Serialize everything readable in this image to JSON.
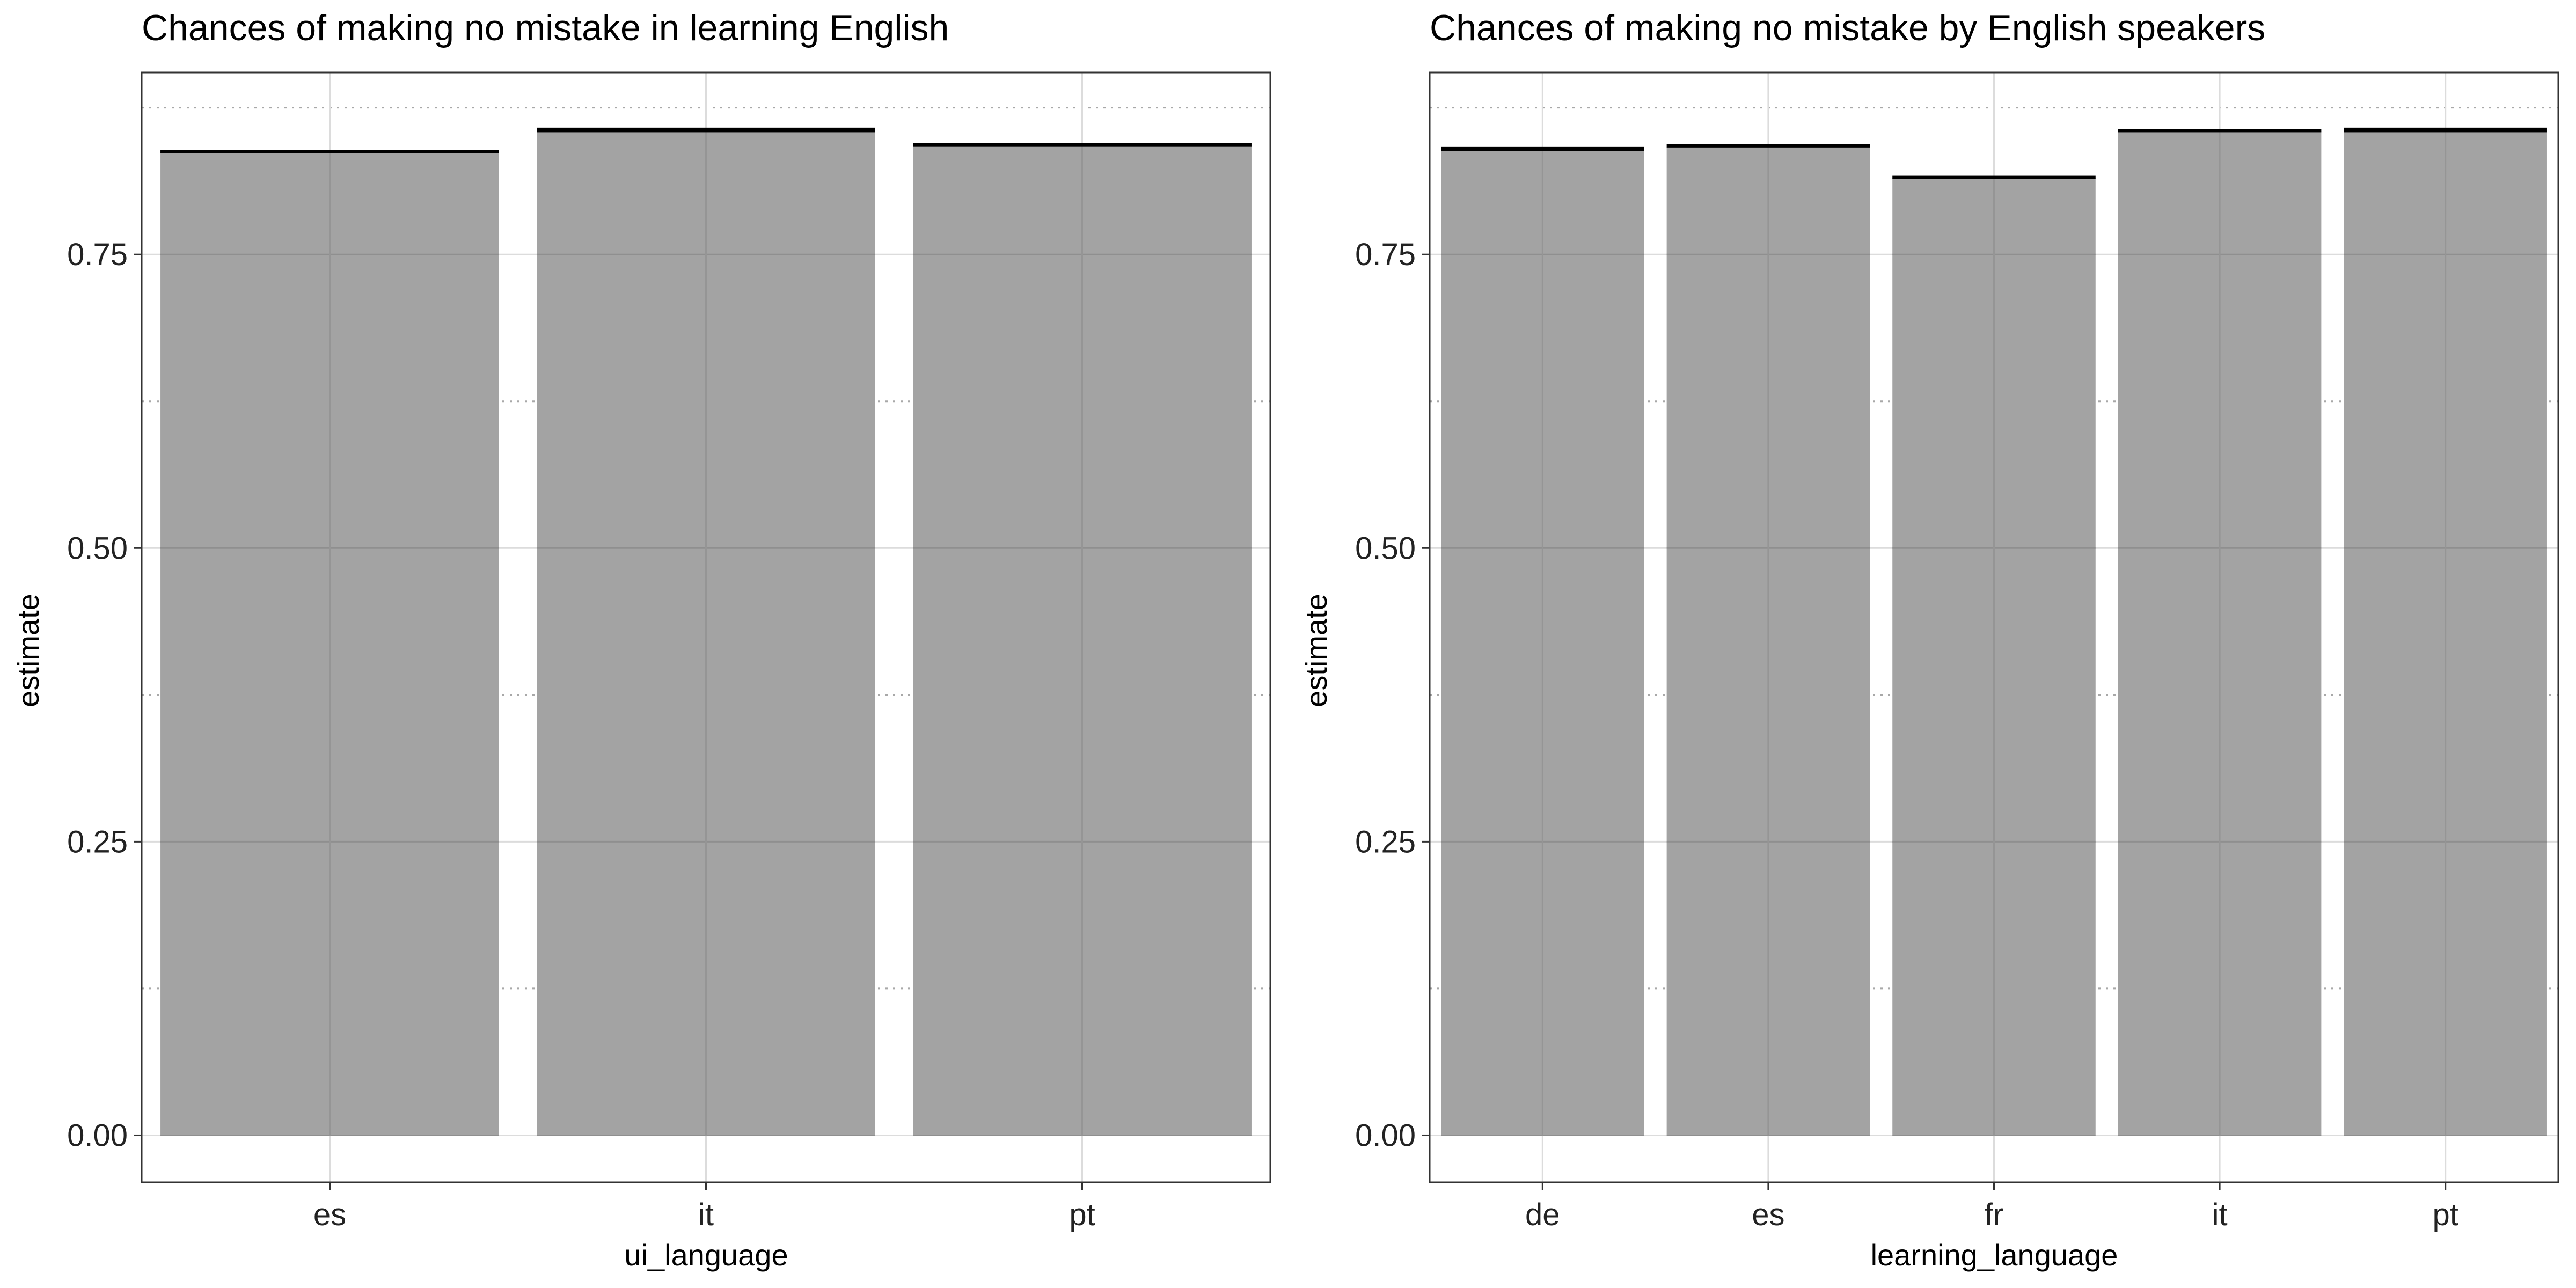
{
  "colors": {
    "bar_fill": "#a3a3a3",
    "errorbar": "#000000",
    "grid_major": "#dcdcdc",
    "grid_minor_dotted": "#a8a8a8",
    "panel_border": "#333333"
  },
  "chart_data": [
    {
      "type": "bar",
      "title": "Chances of making no mistake in learning English",
      "xlabel": "ui_language",
      "ylabel": "estimate",
      "categories": [
        "es",
        "it",
        "pt"
      ],
      "values": [
        0.837,
        0.855,
        0.843
      ],
      "error_upper": [
        0.839,
        0.858,
        0.845
      ],
      "ylim": [
        -0.04,
        0.905
      ],
      "yticks": [
        0.0,
        0.25,
        0.5,
        0.75
      ],
      "ytick_labels": [
        "0.00",
        "0.25",
        "0.50",
        "0.75"
      ],
      "grid": true,
      "minor_grid": "dotted"
    },
    {
      "type": "bar",
      "title": "Chances of making no mistake by English speakers",
      "xlabel": "learning_language",
      "ylabel": "estimate",
      "categories": [
        "de",
        "es",
        "fr",
        "it",
        "pt"
      ],
      "values": [
        0.839,
        0.842,
        0.815,
        0.855,
        0.855
      ],
      "error_upper": [
        0.842,
        0.844,
        0.817,
        0.857,
        0.858
      ],
      "ylim": [
        -0.04,
        0.905
      ],
      "yticks": [
        0.0,
        0.25,
        0.5,
        0.75
      ],
      "ytick_labels": [
        "0.00",
        "0.25",
        "0.50",
        "0.75"
      ],
      "grid": true,
      "minor_grid": "dotted"
    }
  ]
}
